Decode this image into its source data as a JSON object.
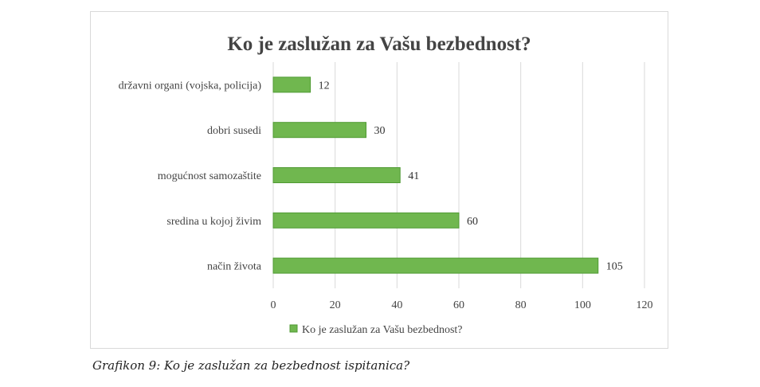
{
  "chart_data": {
    "type": "bar",
    "orientation": "horizontal",
    "title": "Ko je zaslužan za Vašu bezbednost?",
    "categories": [
      "državni organi (vojska, policija)",
      "dobri susedi",
      "mogućnost samozaštite",
      "sredina u kojoj živim",
      "način života"
    ],
    "series": [
      {
        "name": "Ko je zaslužan za Vašu bezbednost?",
        "values": [
          12,
          30,
          41,
          60,
          105
        ],
        "color": "#70b74f",
        "border_color": "#4f9a33"
      }
    ],
    "xlim": [
      0,
      120
    ],
    "xticks": [
      "0",
      "20",
      "40",
      "60",
      "80",
      "100",
      "120"
    ],
    "grid": "vertical",
    "gridline_color": "#d9d9d9",
    "data_labels": true,
    "legend": "bottom"
  },
  "caption": "Grafikon 9: Ko je zaslužan za bezbednost ispitanica?"
}
